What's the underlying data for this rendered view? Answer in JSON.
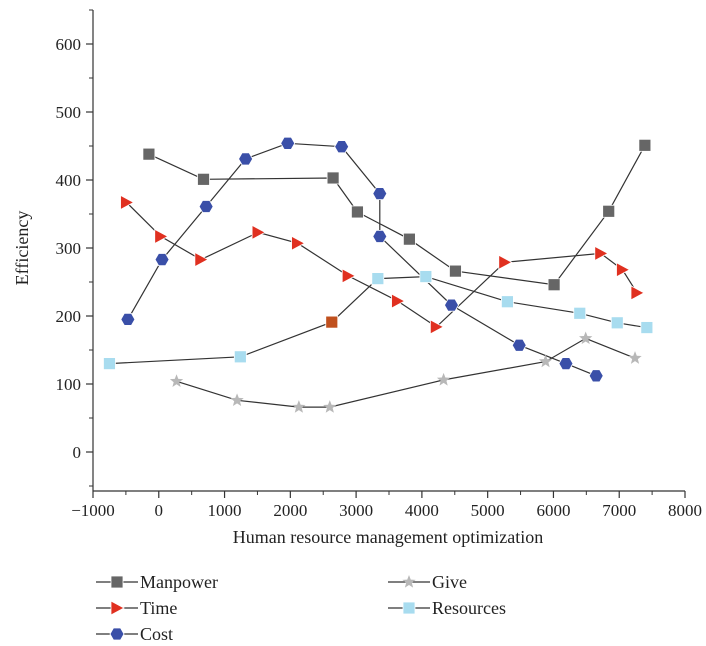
{
  "chart_data": {
    "type": "line",
    "title": "",
    "xlabel": "Human resource management optimization",
    "ylabel": "Efficiency",
    "xlim": [
      -1000,
      8000
    ],
    "ylim": [
      -60,
      650
    ],
    "x_ticks": [
      -1000,
      0,
      1000,
      2000,
      3000,
      4000,
      5000,
      6000,
      7000,
      8000
    ],
    "x_tick_labels": [
      "−1000",
      "0",
      "1000",
      "2000",
      "3000",
      "4000",
      "5000",
      "6000",
      "7000",
      "8000"
    ],
    "y_ticks": [
      0,
      100,
      200,
      300,
      400,
      500,
      600
    ],
    "y_tick_labels": [
      "0",
      "100",
      "200",
      "300",
      "400",
      "500",
      "600"
    ],
    "grid": false,
    "legend_position": "bottom",
    "series": [
      {
        "name": "Manpower",
        "marker": "square",
        "color": "#666666",
        "points": [
          [
            -150,
            438
          ],
          [
            680,
            401
          ],
          [
            2650,
            403
          ],
          [
            3020,
            353
          ],
          [
            3810,
            313
          ],
          [
            4510,
            266
          ],
          [
            6010,
            246
          ],
          [
            6840,
            354
          ],
          [
            7390,
            451
          ]
        ]
      },
      {
        "name": "Time",
        "marker": "triangle-right",
        "color": "#e03020",
        "points": [
          [
            -490,
            367
          ],
          [
            30,
            317
          ],
          [
            640,
            283
          ],
          [
            1510,
            323
          ],
          [
            2110,
            307
          ],
          [
            2880,
            259
          ],
          [
            3630,
            222
          ],
          [
            4220,
            184
          ],
          [
            5260,
            279
          ],
          [
            6720,
            292
          ],
          [
            7050,
            268
          ],
          [
            7270,
            234
          ]
        ]
      },
      {
        "name": "Cost",
        "marker": "hexagon",
        "color": "#3a4fa8",
        "points": [
          [
            -470,
            195
          ],
          [
            50,
            283
          ],
          [
            720,
            361
          ],
          [
            1320,
            431
          ],
          [
            1960,
            454
          ],
          [
            2780,
            449
          ],
          [
            3360,
            380
          ],
          [
            3360,
            317
          ],
          [
            4450,
            216
          ],
          [
            5480,
            157
          ],
          [
            6190,
            130
          ],
          [
            6650,
            112
          ]
        ]
      },
      {
        "name": "Give",
        "marker": "star",
        "color": "#b8b8b8",
        "points": [
          [
            270,
            104
          ],
          [
            1190,
            76
          ],
          [
            2130,
            66
          ],
          [
            2600,
            66
          ],
          [
            4330,
            106
          ],
          [
            5880,
            133
          ],
          [
            6490,
            167
          ],
          [
            7240,
            138
          ]
        ]
      },
      {
        "name": "Resources",
        "marker": "square",
        "color": "#a8dcef",
        "points": [
          [
            -750,
            130
          ],
          [
            1240,
            140
          ],
          [
            2630,
            191
          ],
          [
            3330,
            255
          ],
          [
            4060,
            258
          ],
          [
            5300,
            221
          ],
          [
            6400,
            204
          ],
          [
            6970,
            190
          ],
          [
            7420,
            183
          ]
        ]
      }
    ],
    "highlighted_point": {
      "series": "Resources",
      "x": 2630,
      "y": 191,
      "color": "#c0501e"
    },
    "legend": [
      "Manpower",
      "Time",
      "Cost",
      "Give",
      "Resources"
    ]
  }
}
